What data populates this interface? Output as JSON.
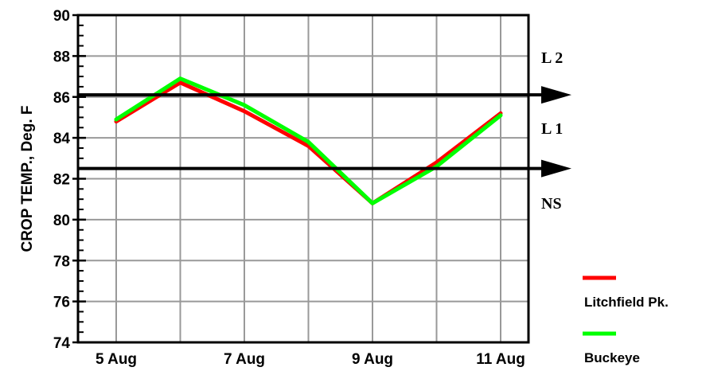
{
  "chart_data": {
    "type": "line",
    "title": "",
    "ylabel": "CROP TEMP., Deg. F",
    "xlabel": "",
    "ylim": [
      74,
      90
    ],
    "y_ticks": [
      "74",
      "76",
      "78",
      "80",
      "82",
      "84",
      "86",
      "88",
      "90"
    ],
    "x_tick_labels": [
      "5 Aug",
      "7 Aug",
      "9 Aug",
      "11 Aug"
    ],
    "x": [
      "5 Aug",
      "6 Aug",
      "7 Aug",
      "8 Aug",
      "9 Aug",
      "10 Aug",
      "11 Aug"
    ],
    "grid": true,
    "series": [
      {
        "name": "Litchfield Pk.",
        "color": "#ff0000",
        "values": [
          84.8,
          86.7,
          85.3,
          83.6,
          80.8,
          82.8,
          85.2
        ]
      },
      {
        "name": "Buckeye",
        "color": "#00ff00",
        "values": [
          84.9,
          86.9,
          85.6,
          83.8,
          80.8,
          82.6,
          85.1
        ]
      }
    ],
    "thresholds": [
      {
        "value": 86.1,
        "label": "L 2"
      },
      {
        "value": 82.5,
        "label": "L 1"
      }
    ],
    "zone_labels": [
      "L 2",
      "L 1",
      "NS"
    ],
    "legend_position": "bottom-right"
  }
}
